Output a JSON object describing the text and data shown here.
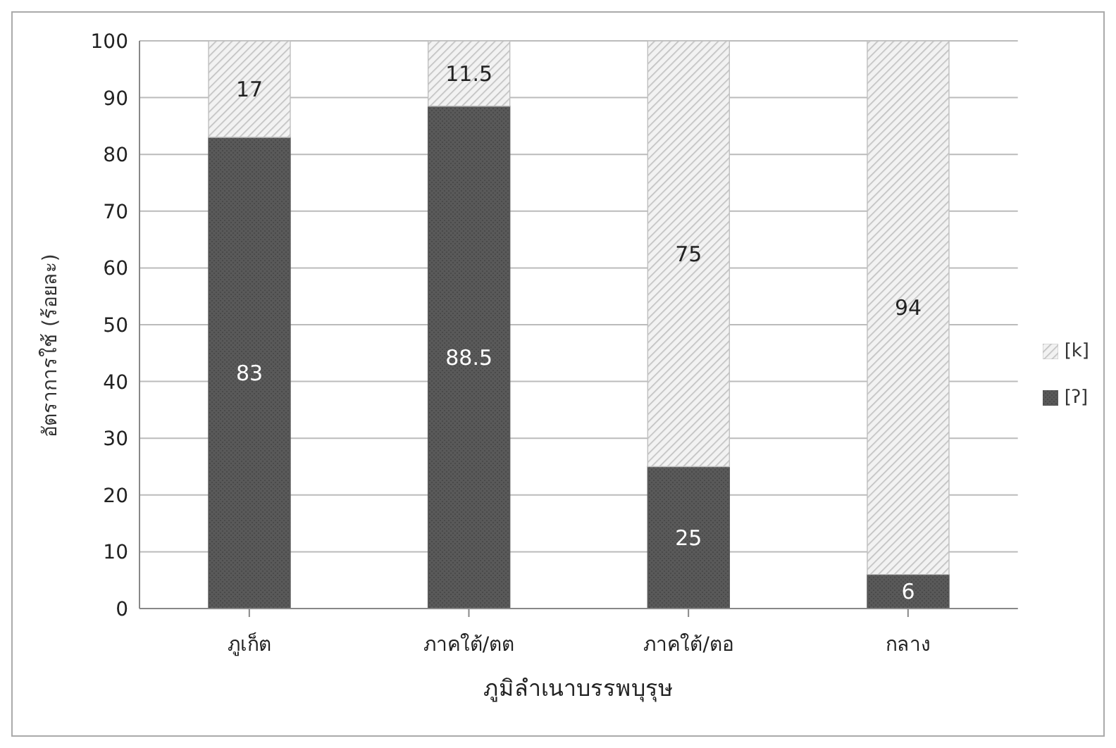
{
  "chart_data": {
    "type": "bar",
    "stacked": true,
    "xlabel": "ภูมิลำเนาบรรพบุรุษ",
    "ylabel": "อัตราการใช้ (ร้อยละ)",
    "categories": [
      "ภูเก็ต",
      "ภาคใต้/ตต",
      "ภาคใต้/ตอ",
      "กลาง"
    ],
    "series": [
      {
        "name": "[ʔ]",
        "color": "#595959",
        "values": [
          83,
          88.5,
          25,
          6
        ]
      },
      {
        "name": "[k]",
        "color": "#bfbfbf",
        "values": [
          17,
          11.5,
          75,
          94
        ]
      }
    ],
    "ylim": [
      0,
      100
    ],
    "yticks": [
      0,
      10,
      20,
      30,
      40,
      50,
      60,
      70,
      80,
      90,
      100
    ],
    "grid": "y",
    "legend": "right",
    "data_labels": true
  }
}
